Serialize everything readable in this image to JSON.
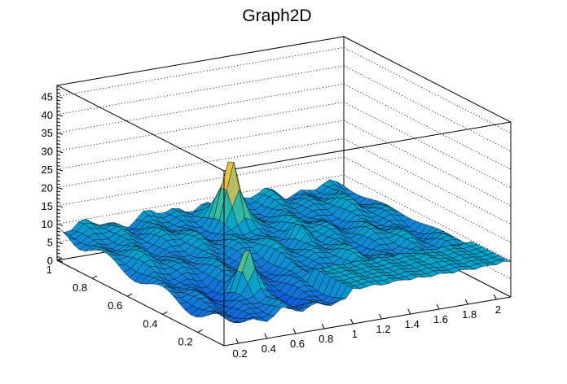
{
  "chart_data": {
    "type": "surface",
    "title": "Graph2D",
    "xlabel": "",
    "ylabel": "",
    "zlabel": "",
    "xlim": [
      0.1,
      2.1
    ],
    "ylim": [
      0.05,
      1.0
    ],
    "zlim": [
      0,
      48
    ],
    "grid": true,
    "x_ticks": [
      "0.2",
      "0.4",
      "0.6",
      "0.8",
      "1",
      "1.2",
      "1.4",
      "1.6",
      "1.8",
      "2"
    ],
    "y_ticks": [
      "1",
      "0.8",
      "0.6",
      "0.4",
      "0.2"
    ],
    "z_ticks": [
      "0",
      "5",
      "10",
      "15",
      "20",
      "25",
      "30",
      "35",
      "40",
      "45"
    ],
    "palette": [
      "#352a87",
      "#0f5cdd",
      "#1481d6",
      "#06a4ca",
      "#2eb7a4",
      "#87bf77",
      "#d1bb59",
      "#fec832",
      "#f9fb0e"
    ],
    "baseline_z": 8,
    "peaks": [
      {
        "x": 0.55,
        "y": 0.28,
        "z": 22
      },
      {
        "x": 1.1,
        "y": 0.82,
        "z": 25
      },
      {
        "x": 1.3,
        "y": 0.6,
        "z": 12
      },
      {
        "x": 0.1,
        "y": 0.95,
        "z": 10
      }
    ],
    "plateau": {
      "x_from": 1.0,
      "x_to": 2.1,
      "y_from": 0.05,
      "y_to": 0.3,
      "z": 10
    }
  }
}
